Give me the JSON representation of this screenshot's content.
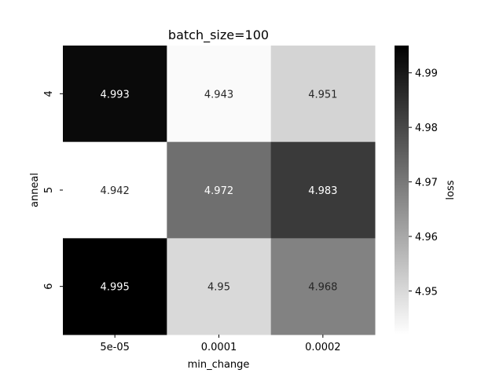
{
  "chart_data": {
    "type": "heatmap",
    "title": "batch_size=100",
    "xlabel": "min_change",
    "ylabel": "anneal",
    "x_categories": [
      "5e-05",
      "0.0001",
      "0.0002"
    ],
    "y_categories": [
      "4",
      "5",
      "6"
    ],
    "values": [
      [
        4.993,
        4.943,
        4.951
      ],
      [
        4.942,
        4.972,
        4.983
      ],
      [
        4.995,
        4.95,
        4.968
      ]
    ],
    "cell_labels": [
      [
        "4.993",
        "4.943",
        "4.951"
      ],
      [
        "4.942",
        "4.972",
        "4.983"
      ],
      [
        "4.995",
        "4.95",
        "4.968"
      ]
    ],
    "colormap": "Greys",
    "color_range": [
      4.942,
      4.995
    ],
    "colorbar": {
      "label": "loss",
      "ticks": [
        4.95,
        4.96,
        4.97,
        4.98,
        4.99
      ],
      "tick_labels": [
        "4.95",
        "4.96",
        "4.97",
        "4.98",
        "4.99"
      ]
    },
    "grid": false
  }
}
